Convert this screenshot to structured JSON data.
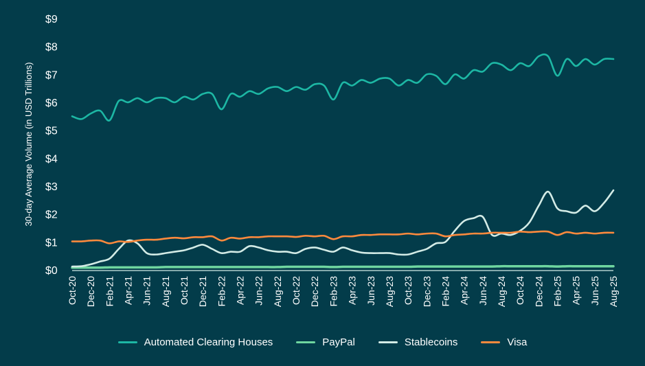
{
  "chart_data": {
    "type": "line",
    "title": "",
    "xlabel": "",
    "ylabel": "30-day Average Volume (in USD Trillions)",
    "ylim": [
      0,
      9
    ],
    "yticks": [
      "$0",
      "$1",
      "$2",
      "$3",
      "$4",
      "$5",
      "$6",
      "$7",
      "$8",
      "$9"
    ],
    "grid": false,
    "legend_placement": "bottom",
    "x": [
      "Oct-20",
      "Nov-20",
      "Dec-20",
      "Jan-21",
      "Feb-21",
      "Mar-21",
      "Apr-21",
      "May-21",
      "Jun-21",
      "Jul-21",
      "Aug-21",
      "Sep-21",
      "Oct-21",
      "Nov-21",
      "Dec-21",
      "Jan-22",
      "Feb-22",
      "Mar-22",
      "Apr-22",
      "May-22",
      "Jun-22",
      "Jul-22",
      "Aug-22",
      "Sep-22",
      "Oct-22",
      "Nov-22",
      "Dec-22",
      "Jan-23",
      "Feb-23",
      "Mar-23",
      "Apr-23",
      "May-23",
      "Jun-23",
      "Jul-23",
      "Aug-23",
      "Sep-23",
      "Oct-23",
      "Nov-23",
      "Dec-23",
      "Jan-24",
      "Feb-24",
      "Mar-24",
      "Apr-24",
      "May-24",
      "Jun-24",
      "Jul-24",
      "Aug-24",
      "Sep-24",
      "Oct-24",
      "Nov-24",
      "Dec-24",
      "Jan-25",
      "Feb-25",
      "Mar-25",
      "Apr-25",
      "May-25",
      "Jun-25",
      "Jul-25",
      "Aug-25"
    ],
    "xtick_labels": [
      "Oct-20",
      "Dec-20",
      "Feb-21",
      "Apr-21",
      "Jun-21",
      "Aug-21",
      "Oct-21",
      "Dec-21",
      "Feb-22",
      "Apr-22",
      "Jun-22",
      "Aug-22",
      "Oct-22",
      "Dec-22",
      "Feb-23",
      "Apr-23",
      "Jun-23",
      "Aug-23",
      "Oct-23",
      "Dec-23",
      "Feb-24",
      "Apr-24",
      "Jun-24",
      "Aug-24",
      "Oct-24",
      "Dec-24",
      "Feb-25",
      "Apr-25",
      "Jun-25",
      "Aug-25"
    ],
    "series": [
      {
        "name": "Automated Clearing Houses",
        "color": "#1db7a4",
        "values": [
          5.5,
          5.4,
          5.6,
          5.7,
          5.35,
          6.05,
          6.0,
          6.15,
          6.0,
          6.15,
          6.15,
          6.0,
          6.2,
          6.1,
          6.3,
          6.3,
          5.75,
          6.3,
          6.2,
          6.4,
          6.3,
          6.5,
          6.55,
          6.4,
          6.55,
          6.45,
          6.65,
          6.6,
          6.1,
          6.7,
          6.6,
          6.8,
          6.7,
          6.85,
          6.85,
          6.6,
          6.8,
          6.7,
          7.0,
          6.95,
          6.65,
          7.0,
          6.85,
          7.15,
          7.1,
          7.4,
          7.35,
          7.15,
          7.4,
          7.3,
          7.65,
          7.65,
          6.95,
          7.55,
          7.3,
          7.55,
          7.35,
          7.55,
          7.55
        ]
      },
      {
        "name": "PayPal",
        "color": "#6fd6a0",
        "values": [
          0.08,
          0.08,
          0.08,
          0.08,
          0.09,
          0.09,
          0.09,
          0.09,
          0.09,
          0.09,
          0.1,
          0.1,
          0.1,
          0.1,
          0.1,
          0.1,
          0.1,
          0.1,
          0.1,
          0.1,
          0.1,
          0.1,
          0.1,
          0.11,
          0.11,
          0.11,
          0.11,
          0.11,
          0.1,
          0.11,
          0.11,
          0.11,
          0.11,
          0.11,
          0.11,
          0.11,
          0.11,
          0.12,
          0.12,
          0.12,
          0.12,
          0.12,
          0.12,
          0.12,
          0.12,
          0.12,
          0.13,
          0.13,
          0.13,
          0.13,
          0.13,
          0.13,
          0.12,
          0.13,
          0.13,
          0.13,
          0.13,
          0.13,
          0.13
        ]
      },
      {
        "name": "Stablecoins",
        "color": "#d3ebe6",
        "values": [
          0.12,
          0.13,
          0.2,
          0.3,
          0.4,
          0.75,
          1.05,
          0.95,
          0.6,
          0.55,
          0.6,
          0.65,
          0.7,
          0.8,
          0.9,
          0.75,
          0.6,
          0.65,
          0.65,
          0.85,
          0.8,
          0.7,
          0.65,
          0.65,
          0.6,
          0.75,
          0.8,
          0.72,
          0.65,
          0.8,
          0.7,
          0.62,
          0.6,
          0.6,
          0.6,
          0.55,
          0.55,
          0.65,
          0.75,
          0.95,
          1.0,
          1.4,
          1.75,
          1.85,
          1.9,
          1.25,
          1.3,
          1.25,
          1.4,
          1.7,
          2.3,
          2.8,
          2.2,
          2.1,
          2.05,
          2.3,
          2.1,
          2.4,
          2.85
        ]
      },
      {
        "name": "Visa",
        "color": "#ff8a3d",
        "values": [
          1.02,
          1.02,
          1.05,
          1.05,
          0.95,
          1.02,
          1.0,
          1.05,
          1.08,
          1.08,
          1.12,
          1.15,
          1.13,
          1.17,
          1.17,
          1.2,
          1.05,
          1.15,
          1.12,
          1.17,
          1.17,
          1.2,
          1.2,
          1.2,
          1.18,
          1.22,
          1.2,
          1.22,
          1.1,
          1.2,
          1.2,
          1.25,
          1.25,
          1.27,
          1.27,
          1.27,
          1.3,
          1.27,
          1.3,
          1.3,
          1.2,
          1.25,
          1.27,
          1.3,
          1.3,
          1.33,
          1.33,
          1.33,
          1.37,
          1.35,
          1.37,
          1.37,
          1.25,
          1.35,
          1.3,
          1.33,
          1.3,
          1.33,
          1.33
        ]
      }
    ]
  },
  "colors": {
    "background": "#033c4a",
    "axis": "#d3ebe6",
    "text": "#ffffff"
  }
}
